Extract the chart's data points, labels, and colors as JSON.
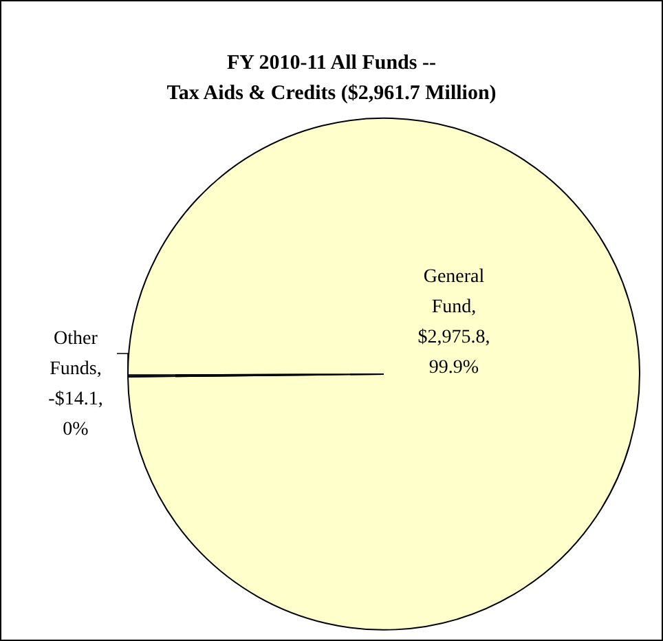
{
  "chart_data": {
    "type": "pie",
    "title": "FY 2010-11 All Funds --\nTax Aids & Credits ($2,961.7 Million)",
    "categories": [
      "General Fund",
      "Other Funds"
    ],
    "values": [
      99.9,
      0.1
    ],
    "colors": [
      "#ffffcc",
      "#99ccff"
    ],
    "value_labels": [
      ",\n$2,975.8,\n99.9%",
      ",\n-$14.1,\n0%"
    ]
  }
}
